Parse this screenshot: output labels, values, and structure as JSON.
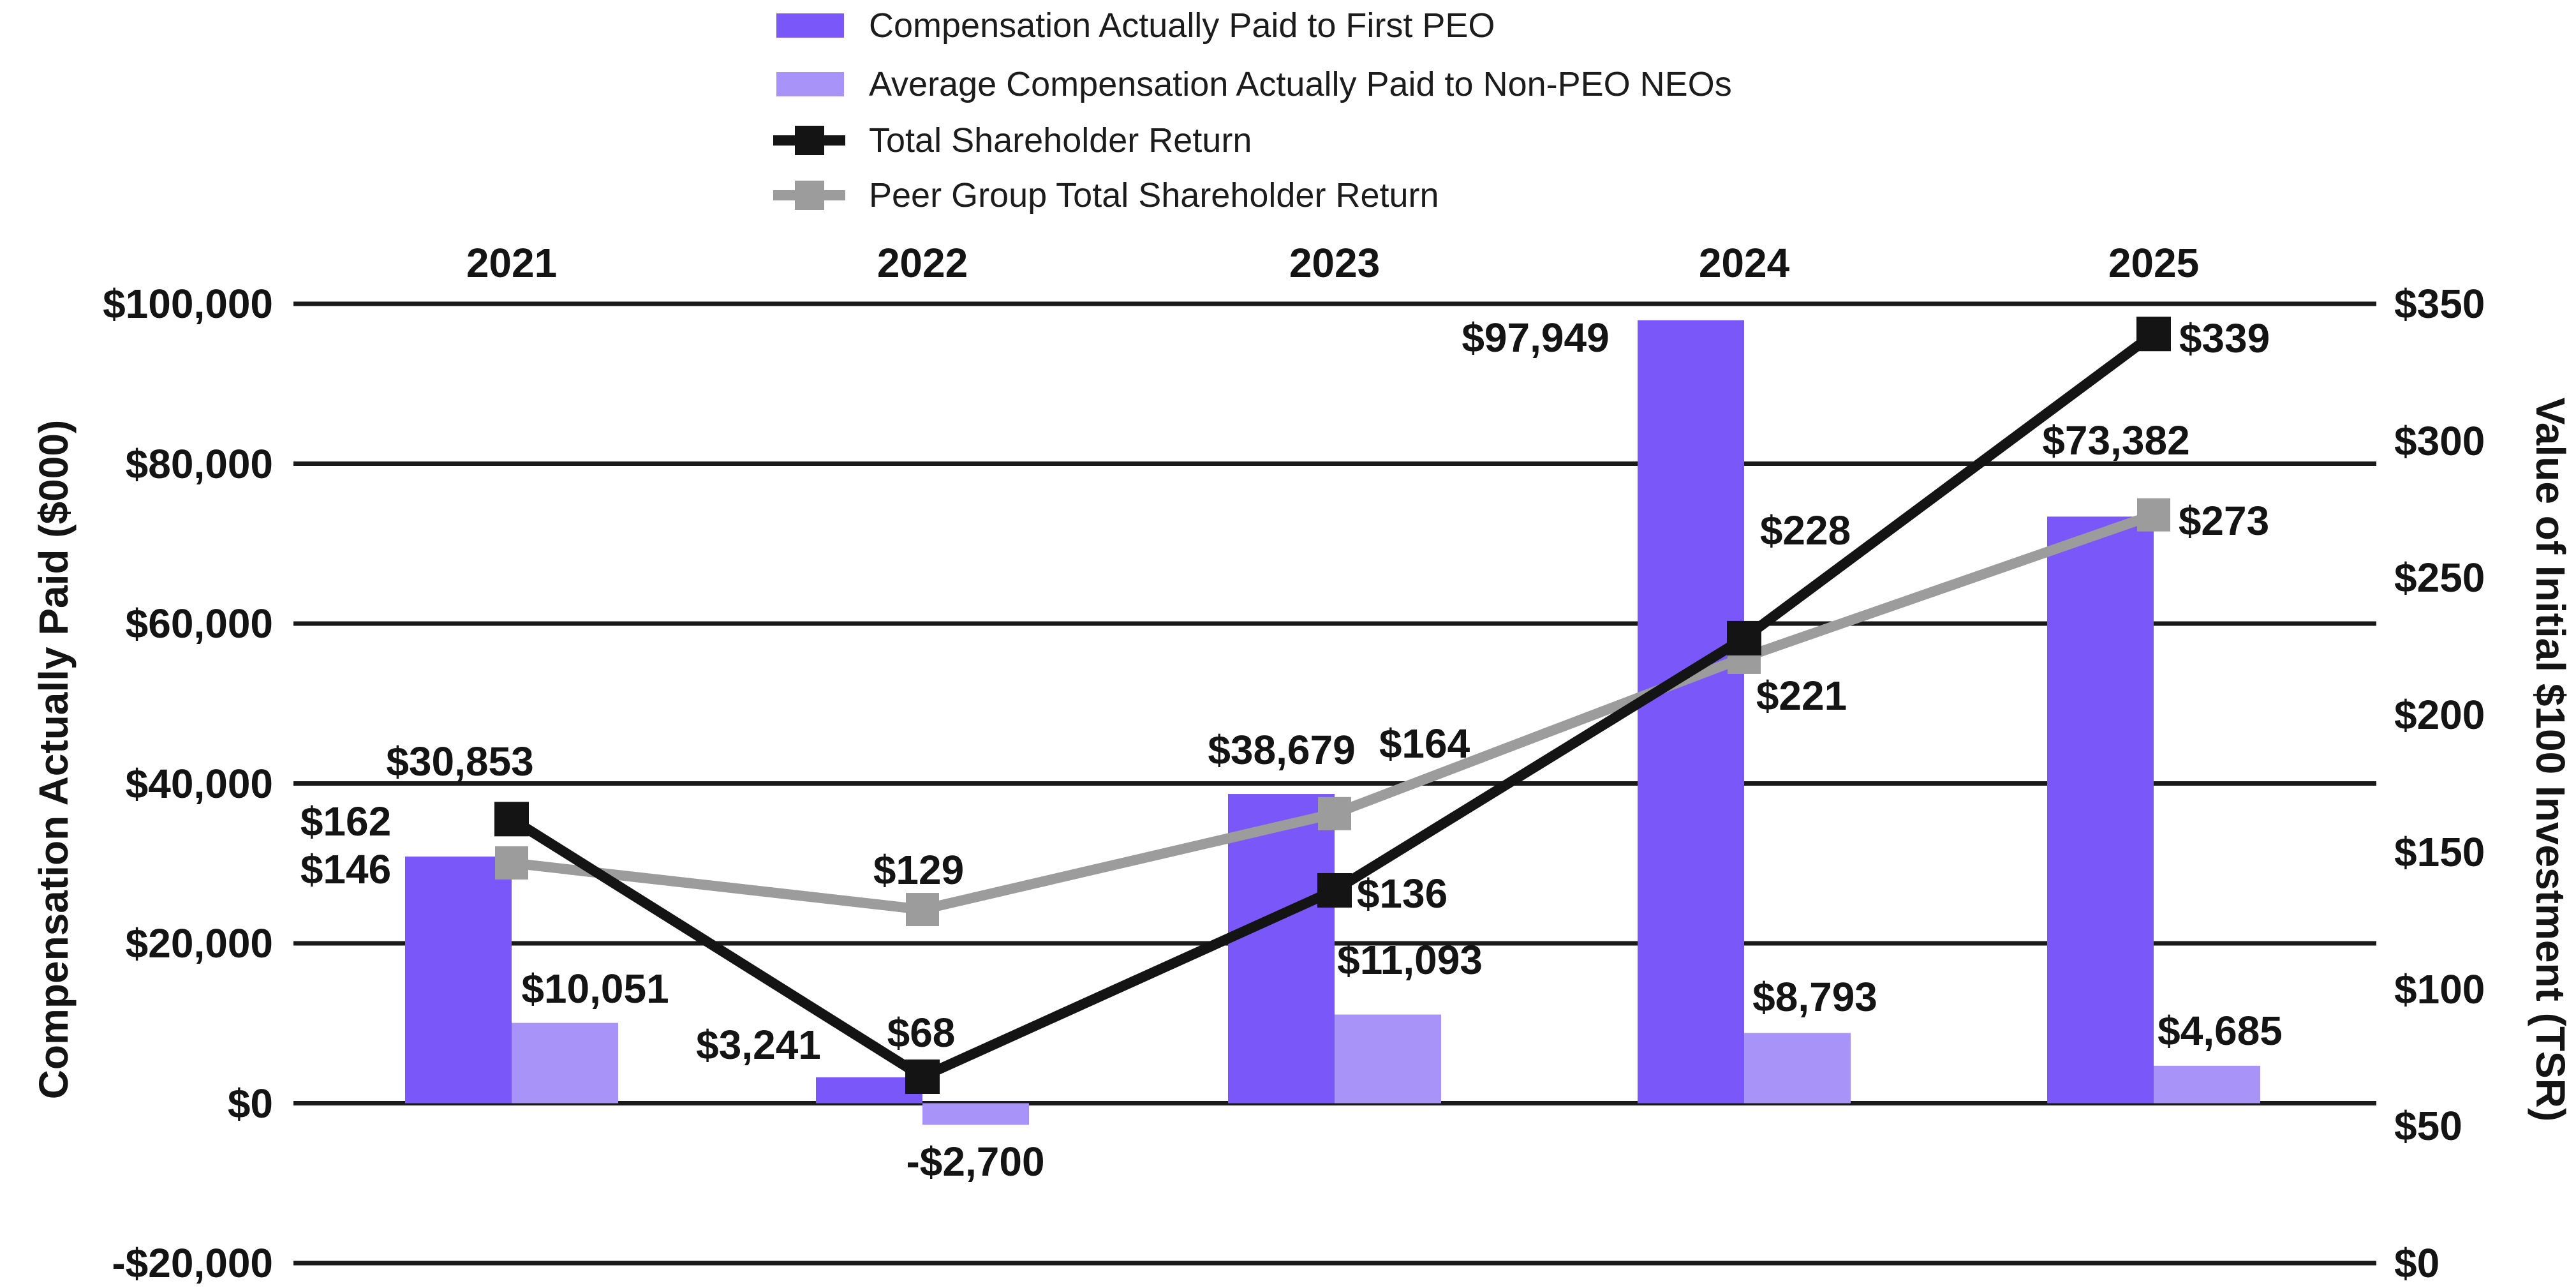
{
  "chart_data": {
    "type": "combo-bar-line",
    "title": "",
    "categories": [
      "2021",
      "2022",
      "2023",
      "2024",
      "2025"
    ],
    "bar_series": [
      {
        "name": "Compensation Actually Paid to First PEO",
        "color": "#7957F8",
        "values": [
          30853,
          3241,
          38679,
          97949,
          73382
        ],
        "labels": [
          "$30,853",
          "$3,241",
          "$38,679",
          "$97,949",
          "$73,382"
        ]
      },
      {
        "name": "Average Compensation Actually Paid to Non-PEO NEOs",
        "color": "#A894F8",
        "values": [
          10051,
          -2700,
          11093,
          8793,
          4685
        ],
        "labels": [
          "$10,051",
          "-$2,700",
          "$11,093",
          "$8,793",
          "$4,685"
        ]
      }
    ],
    "line_series": [
      {
        "name": "Total Shareholder Return",
        "color": "#141414",
        "values": [
          162,
          68,
          136,
          228,
          339
        ],
        "labels": [
          "$162",
          "$68",
          "$136",
          "$228",
          "$339"
        ]
      },
      {
        "name": "Peer Group Total Shareholder Return",
        "color": "#9C9C9C",
        "values": [
          146,
          129,
          164,
          221,
          273
        ],
        "labels": [
          "$146",
          "$129",
          "$164",
          "$221",
          "$273"
        ]
      }
    ],
    "left_axis": {
      "title": "Compensation Actually Paid ($000)",
      "ticks": [
        "$100,000",
        "$80,000",
        "$60,000",
        "$40,000",
        "$20,000",
        "$0",
        "-$20,000"
      ],
      "tick_values": [
        100000,
        80000,
        60000,
        40000,
        20000,
        0,
        -20000
      ],
      "range": [
        -20000,
        100000
      ]
    },
    "right_axis": {
      "title": "Value of Initial $100 Investment (TSR)",
      "ticks": [
        "$350",
        "$300",
        "$250",
        "$200",
        "$150",
        "$100",
        "$50",
        "$0"
      ],
      "tick_values": [
        350,
        300,
        250,
        200,
        150,
        100,
        50,
        0
      ],
      "range": [
        0,
        350
      ]
    },
    "grid": true,
    "legend_position": "top"
  }
}
